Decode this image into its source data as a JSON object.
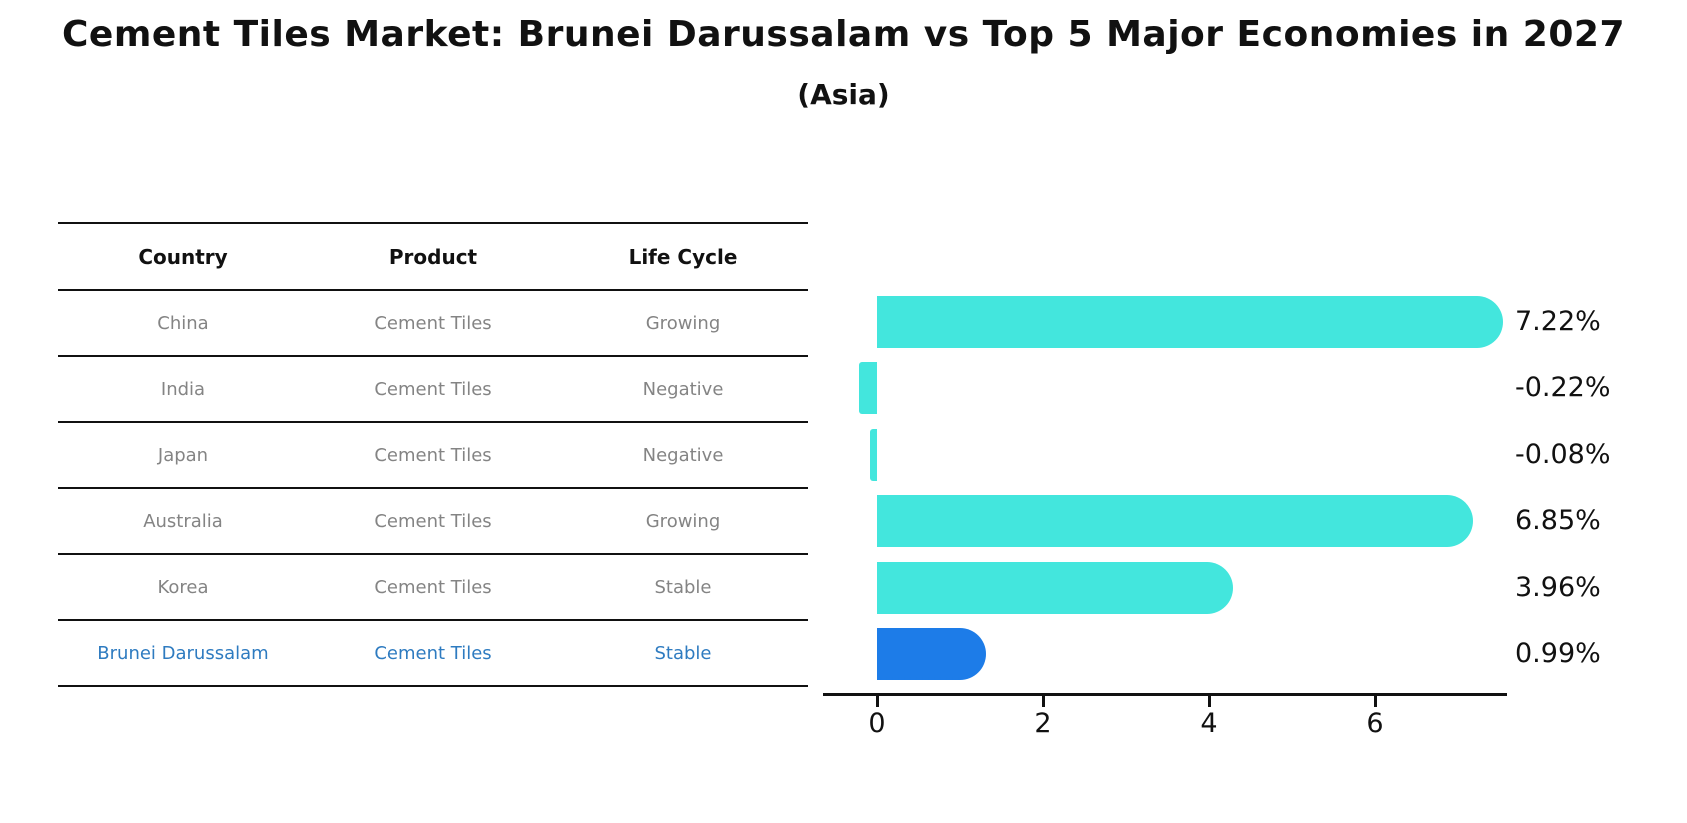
{
  "page": {
    "title": "Cement Tiles Market: Brunei Darussalam vs Top 5 Major Economies in 2027",
    "subtitle": "(Asia)"
  },
  "table": {
    "headers": [
      "Country",
      "Product",
      "Life Cycle"
    ],
    "rows": [
      {
        "country": "China",
        "product": "Cement Tiles",
        "life_cycle": "Growing"
      },
      {
        "country": "India",
        "product": "Cement Tiles",
        "life_cycle": "Negative"
      },
      {
        "country": "Japan",
        "product": "Cement Tiles",
        "life_cycle": "Negative"
      },
      {
        "country": "Australia",
        "product": "Cement Tiles",
        "life_cycle": "Growing"
      },
      {
        "country": "Korea",
        "product": "Cement Tiles",
        "life_cycle": "Stable"
      },
      {
        "country": "Brunei Darussalam",
        "product": "Cement Tiles",
        "life_cycle": "Stable"
      }
    ],
    "highlight_row": "Brunei Darussalam"
  },
  "chart_data": {
    "type": "bar",
    "orientation": "horizontal",
    "title": "Cement Tiles Market: Brunei Darussalam vs Top 5 Major Economies in 2027",
    "subtitle": "(Asia)",
    "categories": [
      "China",
      "India",
      "Japan",
      "Australia",
      "Korea",
      "Brunei Darussalam"
    ],
    "values": [
      7.22,
      -0.22,
      -0.08,
      6.85,
      3.96,
      0.99
    ],
    "display_values": [
      "7.22%",
      "-0.22%",
      "-0.08%",
      "6.85%",
      "3.96%",
      "0.99%"
    ],
    "unit": "percent CAGR",
    "x_ticks": [
      0,
      2,
      4,
      6
    ],
    "x_tick_labels": [
      "0",
      "2",
      "4",
      "6"
    ],
    "xlim": [
      -0.65,
      7.6
    ],
    "grid": false,
    "legend": false,
    "bar_color": "#43E6DD",
    "highlight_color": "#1D7CE8",
    "highlight_index": 5,
    "highlight_text_color": "#2E7BC0"
  }
}
